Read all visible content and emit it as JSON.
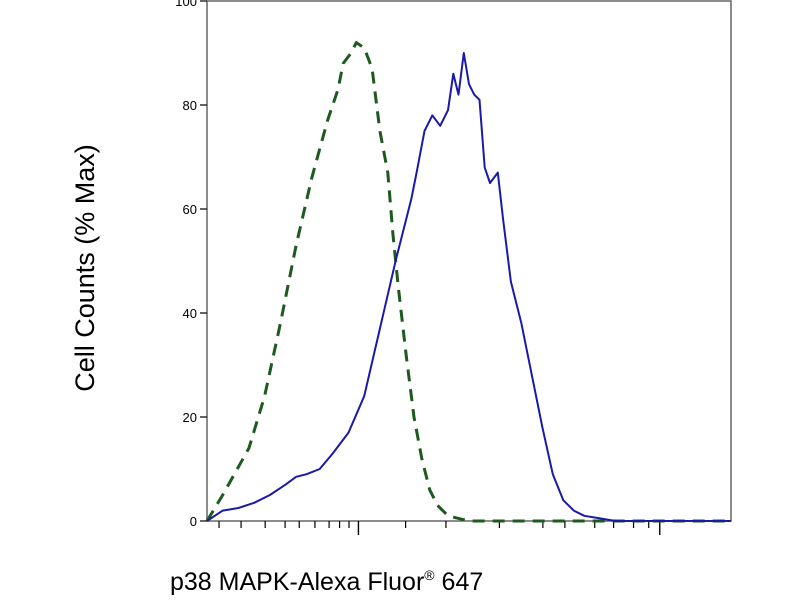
{
  "chart_data": {
    "type": "line",
    "title": "",
    "xlabel": {
      "main": "p38 MAPK-Alexa Fluor",
      "sup": "®",
      "tail": " 647"
    },
    "ylabel": "Cell Counts (% Max)",
    "x_scale": "log",
    "xlim": [
      0,
      1
    ],
    "ylim": [
      0,
      100
    ],
    "yticks": [
      0,
      20,
      40,
      60,
      80,
      100
    ],
    "ytick_labels": [
      "0",
      "20",
      "40",
      "60",
      "80",
      "100"
    ],
    "x_major_ticks": [
      0.289,
      0.864
    ],
    "x_minor_ticks": [
      0.023,
      0.065,
      0.111,
      0.149,
      0.176,
      0.206,
      0.233,
      0.253,
      0.271,
      0.379,
      0.456,
      0.558,
      0.641,
      0.683,
      0.74,
      0.776,
      0.814,
      0.843
    ],
    "grid": false,
    "legend": "none",
    "series": [
      {
        "style": "dashed",
        "color": "#1e5a1e",
        "x": [
          0,
          0.03,
          0.08,
          0.11,
          0.14,
          0.17,
          0.2,
          0.23,
          0.25,
          0.26,
          0.275,
          0.285,
          0.3,
          0.315,
          0.33,
          0.345,
          0.355,
          0.365,
          0.38,
          0.395,
          0.41,
          0.425,
          0.44,
          0.46,
          0.48,
          0.5,
          0.52,
          0.545,
          0.6,
          0.68,
          0.8,
          1.0
        ],
        "y": [
          0,
          5,
          14,
          24,
          38,
          53,
          66,
          77,
          83,
          88,
          90,
          92,
          91,
          87,
          75,
          67,
          55,
          45,
          32,
          20,
          12,
          6,
          3,
          1,
          0.5,
          0,
          0,
          0,
          0,
          0,
          0,
          0
        ]
      },
      {
        "style": "solid",
        "color": "#1a1aa8",
        "x": [
          0,
          0.03,
          0.06,
          0.09,
          0.12,
          0.15,
          0.17,
          0.19,
          0.215,
          0.24,
          0.27,
          0.3,
          0.33,
          0.36,
          0.39,
          0.4,
          0.415,
          0.43,
          0.445,
          0.46,
          0.47,
          0.48,
          0.49,
          0.5,
          0.51,
          0.52,
          0.53,
          0.54,
          0.555,
          0.565,
          0.58,
          0.6,
          0.62,
          0.64,
          0.66,
          0.68,
          0.7,
          0.72,
          0.75,
          0.78,
          0.8,
          0.85,
          0.9,
          1.0
        ],
        "y": [
          0,
          2,
          2.5,
          3.5,
          5,
          7,
          8.5,
          9,
          10,
          13,
          17,
          24,
          37,
          50,
          62,
          67,
          75,
          78,
          76,
          79,
          86,
          82,
          90,
          84,
          82,
          81,
          68,
          65,
          67,
          58,
          46,
          38,
          28,
          18,
          9,
          4,
          2,
          1,
          0.5,
          0,
          0,
          0,
          0,
          0
        ]
      }
    ]
  }
}
